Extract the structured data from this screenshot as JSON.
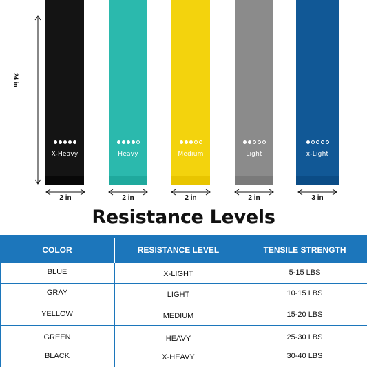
{
  "dimensions": {
    "height_label": "24 in"
  },
  "bands": [
    {
      "label": "X-Heavy",
      "width_label": "2 in",
      "level": 5,
      "color": "#141414",
      "bottom_color": "#080808"
    },
    {
      "label": "Heavy",
      "width_label": "2 in",
      "level": 4,
      "color": "#2bb9ad",
      "bottom_color": "#1fa99d"
    },
    {
      "label": "Medium",
      "width_label": "2 in",
      "level": 3,
      "color": "#f3d30d",
      "bottom_color": "#e8c500"
    },
    {
      "label": "Light",
      "width_label": "2 in",
      "level": 2,
      "color": "#8b8b8b",
      "bottom_color": "#7a7a7a"
    },
    {
      "label": "x-Light",
      "width_label": "3 in",
      "level": 1,
      "color": "#115896",
      "bottom_color": "#0b4c86"
    }
  ],
  "dots_total": 5,
  "title": "Resistance Levels",
  "table": {
    "headers": [
      "COLOR",
      "RESISTANCE LEVEL",
      "TENSILE STRENGTH"
    ],
    "rows": [
      [
        "BLUE",
        "X-LIGHT",
        "5-15 LBS"
      ],
      [
        "GRAY",
        "LIGHT",
        "10-15 LBS"
      ],
      [
        "YELLOW",
        "MEDIUM",
        "15-20 LBS"
      ],
      [
        "GREEN",
        "HEAVY",
        "25-30 LBS"
      ],
      [
        "BLACK",
        "X-HEAVY",
        "30-40 LBS"
      ]
    ],
    "header_color": "#1c76bb"
  }
}
